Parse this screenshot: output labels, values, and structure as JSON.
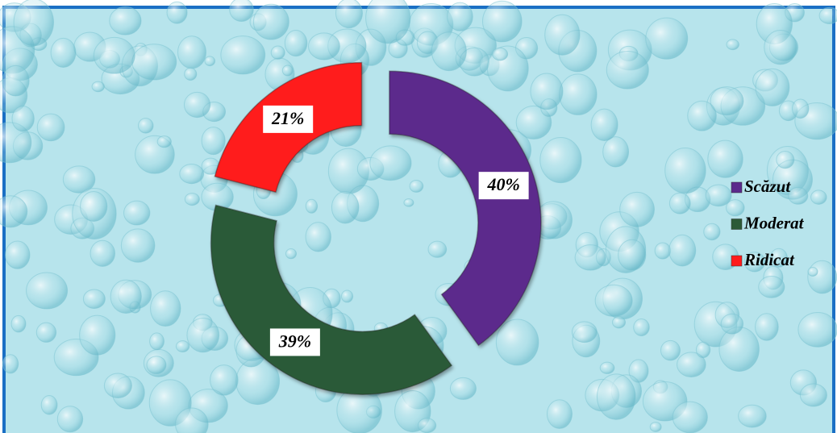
{
  "chart_data": {
    "type": "doughnut",
    "categories": [
      "Scăzut",
      "Moderat",
      "Ridicat"
    ],
    "values": [
      40,
      39,
      21
    ],
    "value_labels": [
      "40%",
      "39%",
      "21%"
    ],
    "colors": [
      "#5b2a8c",
      "#2c5a38",
      "#ff1c1c"
    ],
    "legend": "right"
  }
}
